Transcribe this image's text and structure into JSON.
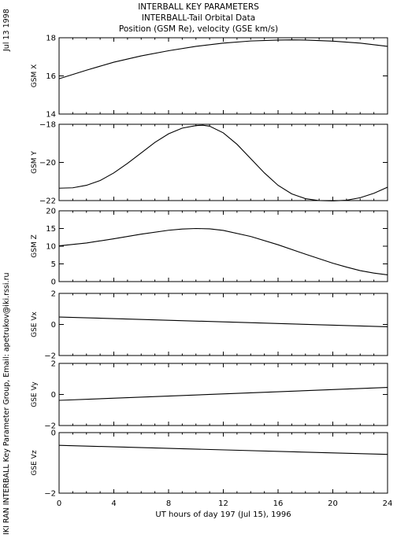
{
  "header": {
    "line1": "INTERBALL KEY PARAMETERS",
    "line2": "INTERBALL-Tail Orbital Data",
    "line3": "Position (GSM Re), velocity (GSE km/s)"
  },
  "side": {
    "date": "Jul 13 1998",
    "credit": "IKI RAN INTERBALL Key Parameter Group, Email: apetrukov@iki.rssi.ru"
  },
  "chart_data": {
    "type": "line",
    "xlabel": "UT hours of day 197 (Jul 15), 1996",
    "xlim": [
      0,
      24
    ],
    "xticks": [
      0,
      4,
      8,
      12,
      16,
      20,
      24
    ],
    "panels": [
      {
        "ylabel": "GSM X",
        "ylim": [
          14,
          18
        ],
        "yticks": [
          14,
          16,
          18
        ],
        "x": [
          0,
          2,
          4,
          6,
          8,
          10,
          12,
          14,
          16,
          17,
          18,
          20,
          22,
          24
        ],
        "y": [
          15.85,
          16.3,
          16.72,
          17.05,
          17.32,
          17.55,
          17.72,
          17.83,
          17.88,
          17.89,
          17.88,
          17.82,
          17.72,
          17.55
        ]
      },
      {
        "ylabel": "GSM Y",
        "ylim": [
          -22,
          -18
        ],
        "yticks": [
          -22,
          -20,
          -18
        ],
        "x": [
          0,
          1,
          2,
          3,
          4,
          5,
          6,
          7,
          8,
          9,
          10,
          10.5,
          11,
          12,
          13,
          14,
          15,
          16,
          17,
          18,
          19,
          20,
          21,
          22,
          23,
          24
        ],
        "y": [
          -21.35,
          -21.33,
          -21.2,
          -20.95,
          -20.55,
          -20.05,
          -19.5,
          -18.95,
          -18.5,
          -18.2,
          -18.07,
          -18.05,
          -18.1,
          -18.45,
          -19.05,
          -19.8,
          -20.55,
          -21.2,
          -21.65,
          -21.9,
          -22.0,
          -22.02,
          -21.98,
          -21.85,
          -21.62,
          -21.3
        ]
      },
      {
        "ylabel": "GSM Z",
        "ylim": [
          0,
          20
        ],
        "yticks": [
          0,
          5,
          10,
          15,
          20
        ],
        "x": [
          0,
          2,
          4,
          6,
          8,
          9,
          10,
          11,
          12,
          14,
          16,
          18,
          20,
          21,
          22,
          23,
          24
        ],
        "y": [
          10.1,
          10.9,
          12.1,
          13.4,
          14.5,
          14.85,
          15.0,
          14.9,
          14.45,
          12.75,
          10.4,
          7.75,
          5.2,
          4.1,
          3.1,
          2.4,
          1.9
        ]
      },
      {
        "ylabel": "GSE Vx",
        "ylim": [
          -2,
          2
        ],
        "yticks": [
          -2,
          0,
          2
        ],
        "x": [
          0,
          24
        ],
        "y": [
          0.48,
          -0.15
        ]
      },
      {
        "ylabel": "GSE Vy",
        "ylim": [
          -2,
          2
        ],
        "yticks": [
          -2,
          0,
          2
        ],
        "x": [
          0,
          24
        ],
        "y": [
          -0.38,
          0.45
        ]
      },
      {
        "ylabel": "GSE Vz",
        "ylim": [
          -2,
          0
        ],
        "yticks": [
          -2,
          0
        ],
        "x": [
          0,
          24
        ],
        "y": [
          -0.42,
          -0.72
        ]
      }
    ]
  }
}
